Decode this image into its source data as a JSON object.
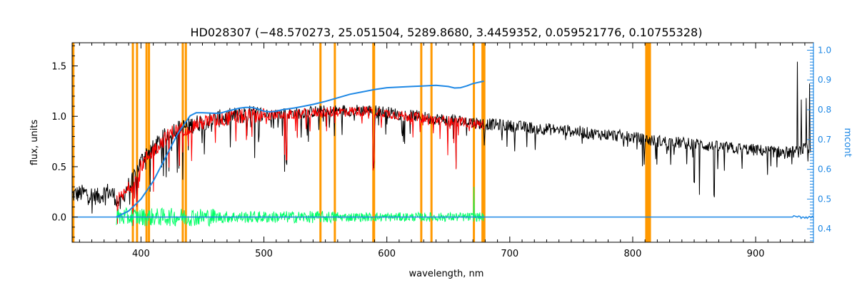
{
  "chart_data": {
    "type": "line",
    "title": "HD028307    (−48.570273, 25.051504, 5289.8680, 3.4459352, 0.059521776, 0.10755328)",
    "xlabel": "wavelength, nm",
    "ylabel": "flux, units",
    "ylabel_right": "mcont",
    "xlim": [
      344,
      947
    ],
    "ylim": [
      -0.25,
      1.73
    ],
    "ylim_right": [
      0.355,
      1.025
    ],
    "x_ticks": [
      400,
      500,
      600,
      700,
      800,
      900
    ],
    "y_ticks": [
      0.0,
      0.5,
      1.0,
      1.5
    ],
    "y_ticks_right": [
      0.4,
      0.5,
      0.6,
      0.7,
      0.8,
      0.9,
      1.0
    ],
    "x_tick_labels": [
      "400",
      "500",
      "600",
      "700",
      "800",
      "900"
    ],
    "y_tick_labels": [
      "0.0",
      "0.5",
      "1.0",
      "1.5"
    ],
    "y_tick_labels_right": [
      "0.4",
      "0.5",
      "0.6",
      "0.7",
      "0.8",
      "0.9",
      "1.0"
    ],
    "colors": {
      "observed": "#000000",
      "model": "#ff0000",
      "residual": "#00ff66",
      "continuum": "#1e88e5",
      "masked": "#ff9900",
      "axis_right": "#1e88e5"
    },
    "masked_lines_nm": [
      345,
      393.4,
      396.8,
      404.5,
      406.5,
      434.0,
      436.5,
      546.0,
      557.7,
      589.0,
      589.6,
      628.0,
      636.3,
      670.8,
      677.8,
      679.3,
      811.0,
      812.5,
      814.0
    ],
    "series": [
      {
        "name": "observed",
        "axis": "left",
        "x": [
          344,
          355,
          365,
          372,
          378,
          383,
          388,
          393,
          398,
          403,
          410,
          418,
          425,
          432,
          438,
          445,
          455,
          465,
          475,
          485,
          495,
          505,
          515,
          525,
          535,
          545,
          555,
          565,
          575,
          585,
          595,
          605,
          615,
          625,
          635,
          645,
          655,
          665,
          675,
          685,
          695,
          705,
          715,
          725,
          735,
          745,
          755,
          765,
          775,
          785,
          795,
          805,
          815,
          825,
          835,
          845,
          855,
          865,
          875,
          885,
          895,
          905,
          915,
          925,
          935,
          940,
          945
        ],
        "y": [
          0.22,
          0.24,
          0.2,
          0.26,
          0.22,
          0.12,
          0.28,
          0.36,
          0.5,
          0.62,
          0.68,
          0.78,
          0.86,
          0.88,
          0.9,
          0.93,
          0.96,
          0.98,
          1.0,
          1.02,
          1.02,
          1.02,
          1.03,
          1.03,
          1.04,
          1.05,
          1.05,
          1.06,
          1.06,
          1.06,
          1.05,
          1.03,
          1.01,
          1.0,
          0.98,
          0.97,
          0.96,
          0.95,
          0.93,
          0.92,
          0.91,
          0.9,
          0.89,
          0.88,
          0.87,
          0.86,
          0.85,
          0.83,
          0.82,
          0.81,
          0.8,
          0.78,
          0.76,
          0.75,
          0.74,
          0.73,
          0.72,
          0.7,
          0.69,
          0.68,
          0.67,
          0.66,
          0.65,
          0.64,
          0.65,
          0.68,
          0.66
        ]
      },
      {
        "name": "model",
        "axis": "left",
        "x": [
          380,
          385,
          390,
          395,
          400,
          405,
          410,
          418,
          425,
          432,
          438,
          445,
          455,
          465,
          475,
          485,
          495,
          505,
          515,
          525,
          535,
          545,
          555,
          565,
          575,
          585,
          595,
          605,
          615,
          625,
          635,
          645,
          655,
          665,
          675,
          679
        ],
        "y": [
          0.16,
          0.2,
          0.28,
          0.36,
          0.5,
          0.6,
          0.66,
          0.76,
          0.84,
          0.87,
          0.89,
          0.92,
          0.95,
          0.97,
          0.99,
          1.0,
          1.01,
          1.01,
          1.02,
          1.02,
          1.03,
          1.04,
          1.04,
          1.05,
          1.05,
          1.05,
          1.04,
          1.02,
          1.0,
          0.99,
          0.97,
          0.96,
          0.95,
          0.94,
          0.92,
          0.92
        ]
      },
      {
        "name": "residual",
        "axis": "left",
        "x": [
          380,
          679
        ],
        "y": [
          0.0,
          0.0
        ]
      },
      {
        "name": "continuum",
        "axis": "right",
        "x": [
          380,
          385,
          390,
          395,
          400,
          405,
          410,
          415,
          420,
          425,
          430,
          435,
          440,
          445,
          450,
          455,
          460,
          465,
          470,
          475,
          480,
          485,
          490,
          495,
          500,
          505,
          510,
          515,
          520,
          525,
          530,
          540,
          550,
          560,
          570,
          580,
          590,
          600,
          610,
          620,
          630,
          640,
          650,
          655,
          660,
          665,
          670,
          679
        ],
        "y": [
          0.44,
          0.45,
          0.46,
          0.48,
          0.5,
          0.53,
          0.56,
          0.6,
          0.64,
          0.68,
          0.72,
          0.75,
          0.78,
          0.79,
          0.79,
          0.789,
          0.788,
          0.789,
          0.795,
          0.8,
          0.805,
          0.808,
          0.808,
          0.803,
          0.795,
          0.793,
          0.795,
          0.8,
          0.803,
          0.806,
          0.81,
          0.818,
          0.828,
          0.84,
          0.852,
          0.86,
          0.868,
          0.874,
          0.876,
          0.878,
          0.88,
          0.882,
          0.878,
          0.873,
          0.874,
          0.88,
          0.888,
          0.896
        ]
      }
    ]
  }
}
